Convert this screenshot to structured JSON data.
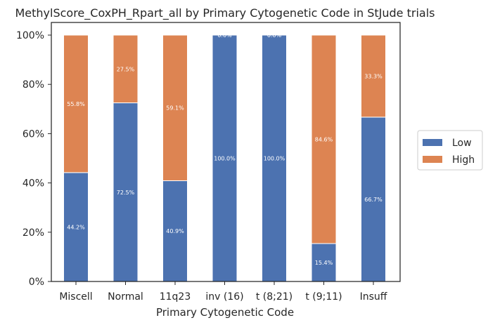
{
  "chart_data": {
    "type": "bar",
    "stacked": true,
    "title": "MethylScore_CoxPH_Rpart_all by Primary Cytogenetic Code in StJude trials",
    "xlabel": "Primary Cytogenetic Code",
    "ylabel": "",
    "ylim": [
      0,
      100
    ],
    "yticks": [
      "0%",
      "20%",
      "40%",
      "60%",
      "80%",
      "100%"
    ],
    "ytick_values": [
      0,
      20,
      40,
      60,
      80,
      100
    ],
    "categories": [
      "Miscell",
      "Normal",
      "11q23",
      "inv (16)",
      "t (8;21)",
      "t (9;11)",
      "Insuff"
    ],
    "series": [
      {
        "name": "Low",
        "color": "#4c72b0",
        "values": [
          44.2,
          72.5,
          40.9,
          100.0,
          100.0,
          15.4,
          66.7
        ],
        "labels": [
          "44.2%",
          "72.5%",
          "40.9%",
          "100.0%",
          "100.0%",
          "15.4%",
          "66.7%"
        ]
      },
      {
        "name": "High",
        "color": "#dd8452",
        "values": [
          55.8,
          27.5,
          59.1,
          0.0,
          0.0,
          84.6,
          33.3
        ],
        "labels": [
          "55.8%",
          "27.5%",
          "59.1%",
          "0.0%",
          "0.0%",
          "84.6%",
          "33.3%"
        ]
      }
    ],
    "legend_position": "right",
    "grid": false
  }
}
